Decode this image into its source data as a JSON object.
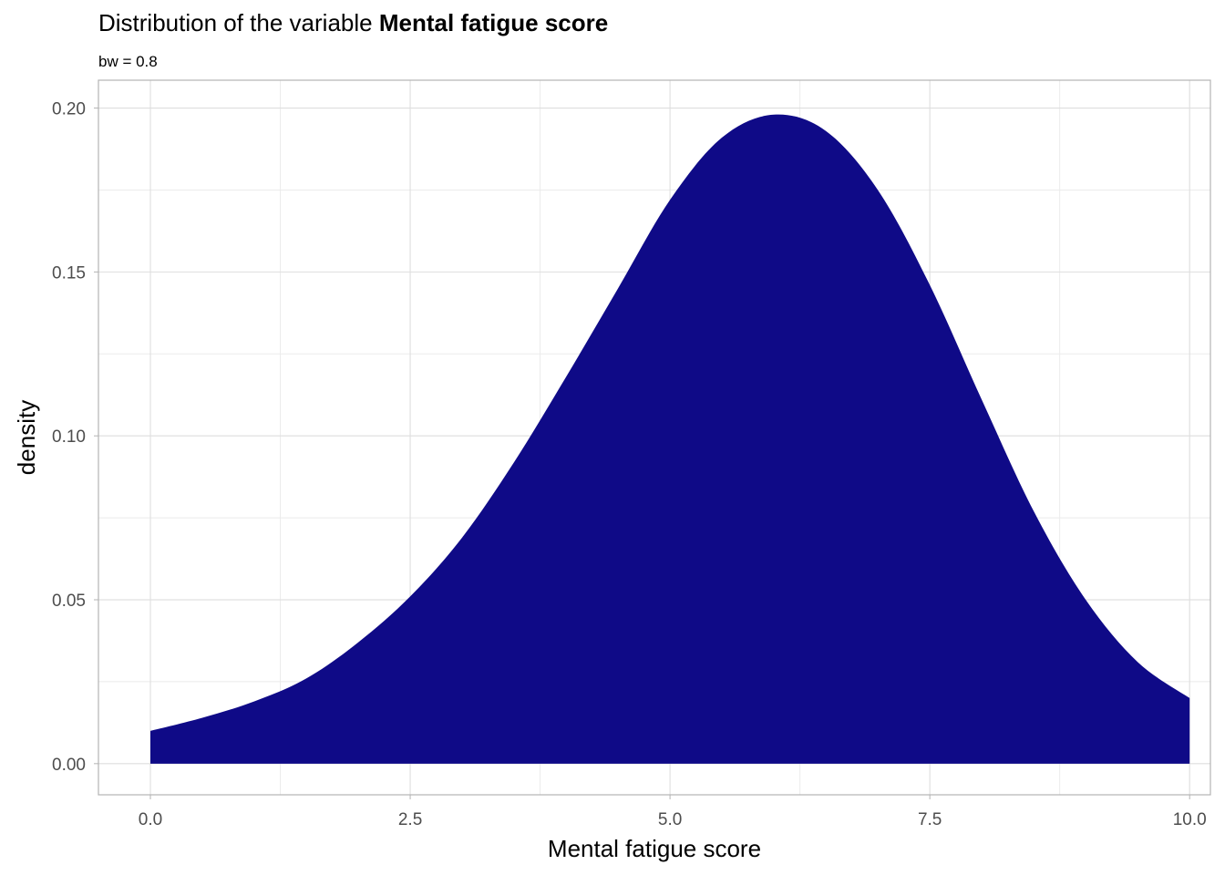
{
  "chart_data": {
    "type": "area",
    "title_prefix": "Distribution of the variable ",
    "title_bold": "Mental fatigue score",
    "subtitle": "bw = 0.8",
    "xlabel": "Mental fatigue score",
    "ylabel": "density",
    "xlim": [
      -0.5,
      10.2
    ],
    "ylim": [
      -0.0095,
      0.2085
    ],
    "x_ticks": [
      0,
      2.5,
      5,
      7.5,
      10
    ],
    "x_tick_labels": [
      "0.0",
      "2.5",
      "5.0",
      "7.5",
      "10.0"
    ],
    "y_ticks": [
      0,
      0.05,
      0.1,
      0.15,
      0.2
    ],
    "y_tick_labels": [
      "0.00",
      "0.05",
      "0.10",
      "0.15",
      "0.20"
    ],
    "grid": true,
    "fill_color": "#0f0a87",
    "series": [
      {
        "x": [
          0,
          0.5,
          1,
          1.5,
          2,
          2.5,
          3,
          3.5,
          4,
          4.5,
          5,
          5.5,
          6,
          6.5,
          7,
          7.5,
          8,
          8.5,
          9,
          9.5,
          10
        ],
        "y": [
          0.01,
          0.014,
          0.019,
          0.026,
          0.037,
          0.051,
          0.069,
          0.092,
          0.118,
          0.145,
          0.172,
          0.191,
          0.198,
          0.193,
          0.175,
          0.146,
          0.111,
          0.077,
          0.05,
          0.031,
          0.02
        ]
      }
    ]
  }
}
